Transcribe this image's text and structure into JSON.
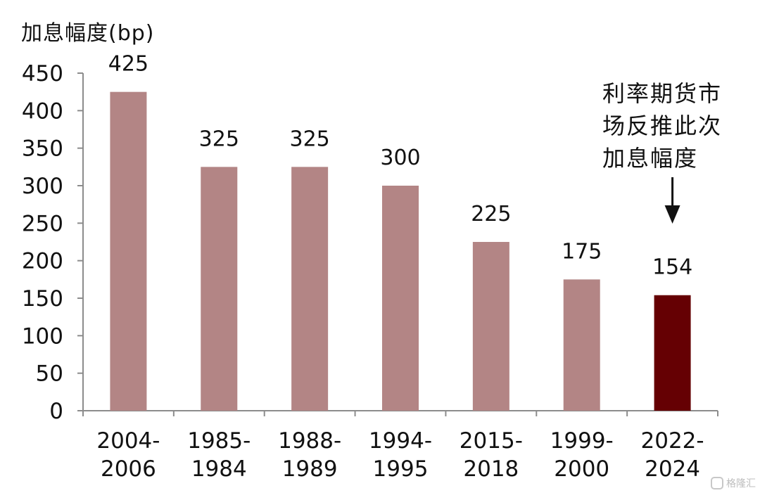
{
  "chart_data": {
    "type": "bar",
    "ylabel": "加息幅度(bp)",
    "categories": [
      [
        "2004-",
        "2006"
      ],
      [
        "1985-",
        "1984"
      ],
      [
        "1988-",
        "1989"
      ],
      [
        "1994-",
        "1995"
      ],
      [
        "2015-",
        "2018"
      ],
      [
        "1999-",
        "2000"
      ],
      [
        "2022-",
        "2024"
      ]
    ],
    "values": [
      425,
      325,
      325,
      300,
      225,
      175,
      154
    ],
    "data_labels": [
      "425",
      "325",
      "325",
      "300",
      "225",
      "175",
      "154"
    ],
    "ylim": [
      0,
      450
    ],
    "yticks": [
      0,
      50,
      100,
      150,
      200,
      250,
      300,
      350,
      400,
      450
    ],
    "grid": false,
    "colors": {
      "default": "#b38585",
      "highlight": "#650003"
    },
    "highlight_index": 6,
    "annotation": {
      "lines": [
        "利率期货市",
        "场反推此次",
        "加息幅度"
      ],
      "arrow": "down"
    }
  },
  "watermark": {
    "text": "格隆汇",
    "icon": "gelonghui-logo-icon"
  }
}
